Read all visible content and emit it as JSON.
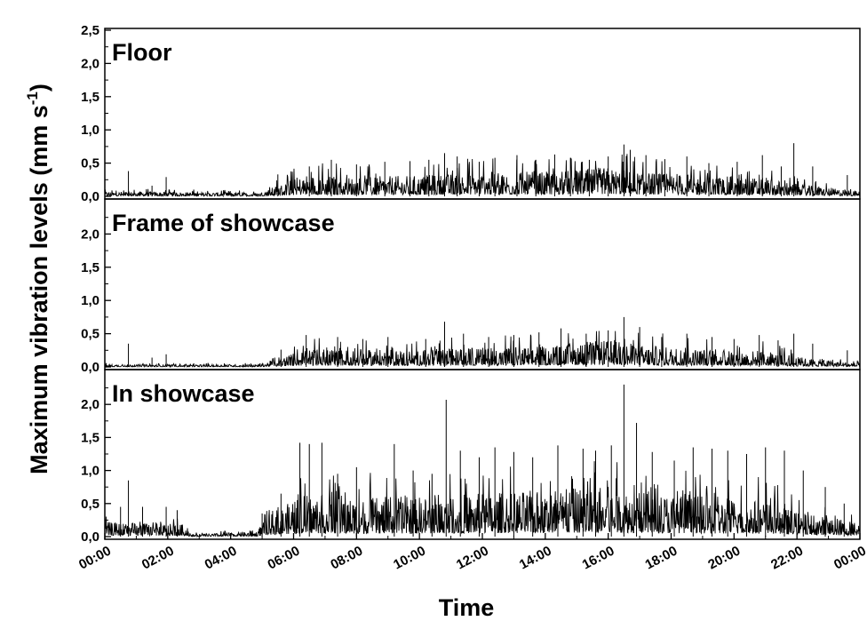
{
  "chart_data": {
    "type": "line",
    "xlabel": "Time",
    "ylabel": "Maximum vibration levels (mm s",
    "ylabel_sup": "-1",
    "ylabel_close": ")",
    "x_ticks": [
      "00:00",
      "02:00",
      "04:00",
      "06:00",
      "08:00",
      "10:00",
      "12:00",
      "14:00",
      "16:00",
      "18:00",
      "20:00",
      "22:00",
      "00:00"
    ],
    "x_unit": "hours",
    "xlim": [
      0,
      24
    ],
    "grid": false,
    "panels": [
      {
        "title": "Floor",
        "y_ticks": [
          "0,0",
          "0,5",
          "1,0",
          "1,5",
          "2,0",
          "2,5"
        ],
        "ylim": [
          0,
          2.5
        ],
        "baseline": [
          [
            0,
            0.04
          ],
          [
            4.9,
            0.03
          ],
          [
            6.4,
            0.18
          ],
          [
            8,
            0.16
          ],
          [
            10,
            0.17
          ],
          [
            12,
            0.2
          ],
          [
            14,
            0.2
          ],
          [
            16,
            0.24
          ],
          [
            17,
            0.2
          ],
          [
            19,
            0.17
          ],
          [
            21,
            0.15
          ],
          [
            22,
            0.1
          ],
          [
            24,
            0.04
          ]
        ],
        "spikes": [
          [
            0.75,
            0.38
          ],
          [
            1.5,
            0.16
          ],
          [
            1.95,
            0.29
          ],
          [
            5.5,
            0.33
          ],
          [
            6.5,
            0.45
          ],
          [
            7.2,
            0.55
          ],
          [
            8.0,
            0.48
          ],
          [
            8.9,
            0.52
          ],
          [
            9.7,
            0.53
          ],
          [
            10.3,
            0.55
          ],
          [
            10.8,
            0.65
          ],
          [
            11.2,
            0.6
          ],
          [
            11.9,
            0.52
          ],
          [
            12.4,
            0.58
          ],
          [
            13.1,
            0.62
          ],
          [
            13.7,
            0.55
          ],
          [
            14.3,
            0.63
          ],
          [
            14.8,
            0.58
          ],
          [
            15.4,
            0.55
          ],
          [
            16.0,
            0.6
          ],
          [
            16.5,
            0.78
          ],
          [
            16.7,
            0.7
          ],
          [
            17.2,
            0.62
          ],
          [
            17.8,
            0.56
          ],
          [
            18.5,
            0.6
          ],
          [
            19.2,
            0.5
          ],
          [
            20.1,
            0.52
          ],
          [
            20.9,
            0.62
          ],
          [
            21.5,
            0.45
          ],
          [
            21.9,
            0.8
          ],
          [
            22.5,
            0.45
          ],
          [
            23.6,
            0.32
          ]
        ]
      },
      {
        "title": "Frame of showcase",
        "y_ticks": [
          "0,0",
          "0,5",
          "1,0",
          "1,5",
          "2,0"
        ],
        "ylim": [
          0,
          2.5
        ],
        "baseline": [
          [
            0,
            0.02
          ],
          [
            4.9,
            0.02
          ],
          [
            6.4,
            0.15
          ],
          [
            8,
            0.14
          ],
          [
            10,
            0.14
          ],
          [
            12,
            0.16
          ],
          [
            14,
            0.17
          ],
          [
            16,
            0.22
          ],
          [
            17,
            0.18
          ],
          [
            19,
            0.15
          ],
          [
            21,
            0.13
          ],
          [
            22,
            0.08
          ],
          [
            24,
            0.03
          ]
        ],
        "spikes": [
          [
            0.75,
            0.35
          ],
          [
            1.5,
            0.14
          ],
          [
            1.95,
            0.19
          ],
          [
            5.6,
            0.26
          ],
          [
            6.4,
            0.48
          ],
          [
            7.4,
            0.45
          ],
          [
            8.2,
            0.42
          ],
          [
            9.0,
            0.45
          ],
          [
            10.2,
            0.42
          ],
          [
            10.8,
            0.68
          ],
          [
            11.4,
            0.5
          ],
          [
            12.2,
            0.45
          ],
          [
            13.0,
            0.48
          ],
          [
            13.8,
            0.52
          ],
          [
            14.5,
            0.58
          ],
          [
            15.3,
            0.5
          ],
          [
            16.0,
            0.55
          ],
          [
            16.5,
            0.75
          ],
          [
            17.0,
            0.6
          ],
          [
            17.7,
            0.45
          ],
          [
            18.5,
            0.5
          ],
          [
            19.3,
            0.45
          ],
          [
            20.0,
            0.42
          ],
          [
            20.8,
            0.48
          ],
          [
            21.4,
            0.4
          ],
          [
            21.9,
            0.5
          ],
          [
            22.5,
            0.35
          ],
          [
            23.6,
            0.25
          ]
        ]
      },
      {
        "title": "In showcase",
        "y_ticks": [
          "0,0",
          "0,5",
          "1,0",
          "1,5",
          "2,0"
        ],
        "ylim": [
          0,
          2.5
        ],
        "baseline": [
          [
            0,
            0.12
          ],
          [
            2.5,
            0.1
          ],
          [
            2.8,
            0.02
          ],
          [
            4.8,
            0.04
          ],
          [
            5.3,
            0.2
          ],
          [
            6.4,
            0.35
          ],
          [
            8,
            0.32
          ],
          [
            10,
            0.33
          ],
          [
            12,
            0.36
          ],
          [
            14,
            0.38
          ],
          [
            16,
            0.42
          ],
          [
            17,
            0.38
          ],
          [
            19,
            0.33
          ],
          [
            21,
            0.3
          ],
          [
            22,
            0.2
          ],
          [
            24,
            0.12
          ]
        ],
        "spikes": [
          [
            0.5,
            0.45
          ],
          [
            0.75,
            0.85
          ],
          [
            1.2,
            0.45
          ],
          [
            1.95,
            0.45
          ],
          [
            2.3,
            0.4
          ],
          [
            5.0,
            0.35
          ],
          [
            5.6,
            0.65
          ],
          [
            6.2,
            1.42
          ],
          [
            6.5,
            1.4
          ],
          [
            6.9,
            1.42
          ],
          [
            7.4,
            0.95
          ],
          [
            8.0,
            1.05
          ],
          [
            9.2,
            1.4
          ],
          [
            9.8,
            1.0
          ],
          [
            10.4,
            0.95
          ],
          [
            10.85,
            2.07
          ],
          [
            11.3,
            1.3
          ],
          [
            11.9,
            1.2
          ],
          [
            12.4,
            1.35
          ],
          [
            13.0,
            1.28
          ],
          [
            13.6,
            1.2
          ],
          [
            14.4,
            1.38
          ],
          [
            15.2,
            1.33
          ],
          [
            15.6,
            1.3
          ],
          [
            16.1,
            1.38
          ],
          [
            16.5,
            2.3
          ],
          [
            16.9,
            1.72
          ],
          [
            17.4,
            1.28
          ],
          [
            18.1,
            1.15
          ],
          [
            18.7,
            1.35
          ],
          [
            19.3,
            1.33
          ],
          [
            19.8,
            1.3
          ],
          [
            20.4,
            1.25
          ],
          [
            21.0,
            1.35
          ],
          [
            21.6,
            1.3
          ],
          [
            22.2,
            1.0
          ],
          [
            22.9,
            0.75
          ],
          [
            23.5,
            0.5
          ]
        ]
      }
    ]
  }
}
